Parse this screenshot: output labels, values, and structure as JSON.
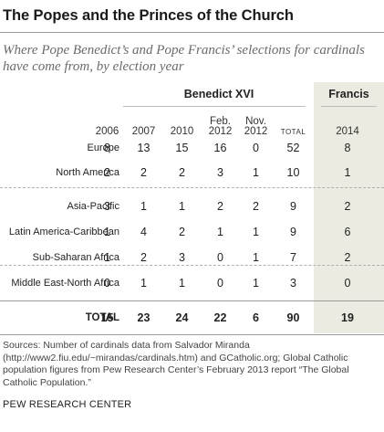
{
  "title": "The Popes and the Princes of the Church",
  "subtitle": "Where Pope Benedict’s and Pope Francis’ selections for cardinals have come from, by election year",
  "groups": {
    "benedict": "Benedict XVI",
    "francis": "Francis"
  },
  "columns": [
    "2006",
    "2007",
    "2010",
    "Feb. 2012",
    "Nov. 2012",
    "TOTAL",
    "2014"
  ],
  "chart_data": {
    "type": "table",
    "title": "The Popes and the Princes of the Church",
    "column_groups": [
      {
        "name": "Benedict XVI",
        "columns": [
          "2006",
          "2007",
          "2010",
          "Feb. 2012",
          "Nov. 2012",
          "TOTAL"
        ]
      },
      {
        "name": "Francis",
        "columns": [
          "2014"
        ]
      }
    ],
    "rows": [
      {
        "region": "Europe",
        "values": [
          8,
          13,
          15,
          16,
          0,
          52,
          8
        ]
      },
      {
        "region": "North America",
        "values": [
          2,
          2,
          2,
          3,
          1,
          10,
          1
        ]
      },
      {
        "region": "Asia-Pacific",
        "values": [
          3,
          1,
          1,
          2,
          2,
          9,
          2
        ]
      },
      {
        "region": "Latin America-Caribbean",
        "values": [
          1,
          4,
          2,
          1,
          1,
          9,
          6
        ]
      },
      {
        "region": "Sub-Saharan Africa",
        "values": [
          1,
          2,
          3,
          0,
          1,
          7,
          2
        ]
      },
      {
        "region": "Middle East-North Africa",
        "values": [
          0,
          1,
          1,
          0,
          1,
          3,
          0
        ]
      },
      {
        "region": "TOTAL",
        "values": [
          15,
          23,
          24,
          22,
          6,
          90,
          19
        ]
      }
    ]
  },
  "source": "Sources: Number of cardinals data from Salvador Miranda (http://www2.fiu.edu/~mirandas/cardinals.htm) and GCatholic.org; Global Catholic population figures from Pew Research Center’s February 2013 report “The Global Catholic Population.”",
  "footer": "PEW RESEARCH CENTER",
  "colors": {
    "francis_highlight": "#ebebe1",
    "rule": "#9a9a9a",
    "subtitle": "#6b6b6b"
  }
}
